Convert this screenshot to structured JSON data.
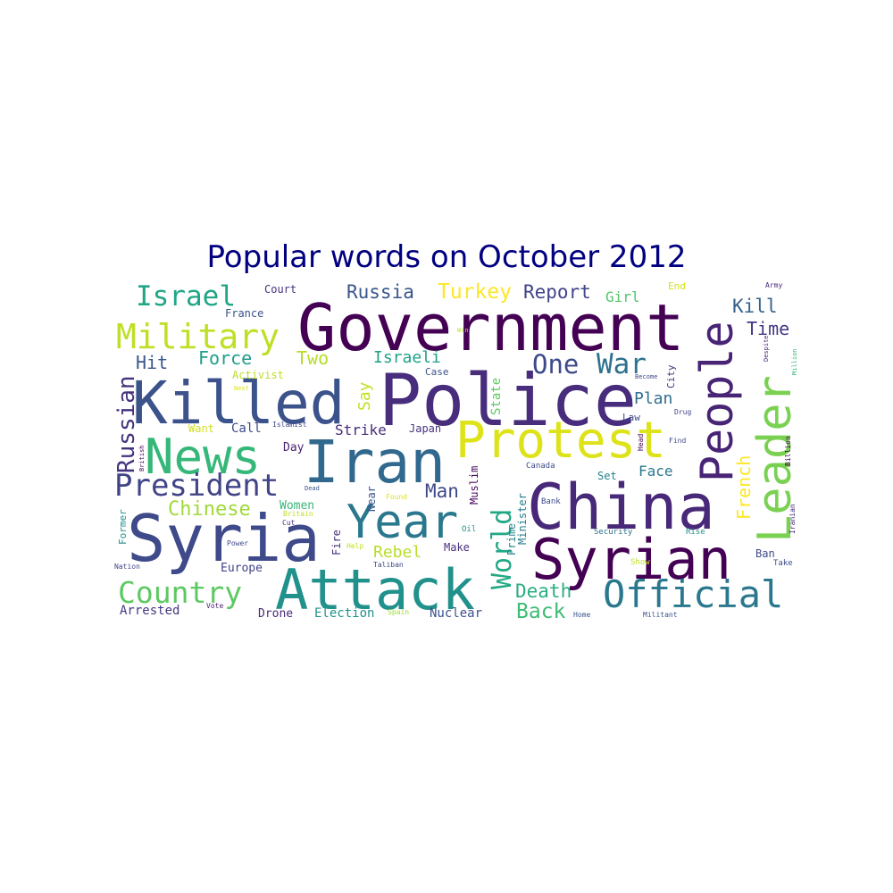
{
  "chart_data": {
    "type": "wordcloud",
    "title": "Popular words on October 2012",
    "words": [
      {
        "text": "Government",
        "size": 0.95,
        "color": "#440154"
      },
      {
        "text": "Police",
        "size": 0.98,
        "color": "#472d7b"
      },
      {
        "text": "Killed",
        "size": 0.9,
        "color": "#3b528b"
      },
      {
        "text": "Syria",
        "size": 0.9,
        "color": "#3e4a89"
      },
      {
        "text": "Iran",
        "size": 0.85,
        "color": "#31688e"
      },
      {
        "text": "China",
        "size": 0.82,
        "color": "#482878"
      },
      {
        "text": "Syrian",
        "size": 0.78,
        "color": "#440154"
      },
      {
        "text": "Attack",
        "size": 0.78,
        "color": "#21918c"
      },
      {
        "text": "Year",
        "size": 0.72,
        "color": "#2a788e"
      },
      {
        "text": "News",
        "size": 0.68,
        "color": "#35b779"
      },
      {
        "text": "Protest",
        "size": 0.7,
        "color": "#dde318"
      },
      {
        "text": "People",
        "size": 0.66,
        "color": "#482475"
      },
      {
        "text": "Leader",
        "size": 0.64,
        "color": "#7ad151"
      },
      {
        "text": "Military",
        "size": 0.44,
        "color": "#bddf26"
      },
      {
        "text": "President",
        "size": 0.42,
        "color": "#414487"
      },
      {
        "text": "Official",
        "size": 0.46,
        "color": "#2a788e"
      },
      {
        "text": "Country",
        "size": 0.38,
        "color": "#5ec962"
      },
      {
        "text": "Israel",
        "size": 0.38,
        "color": "#21a685"
      },
      {
        "text": "World",
        "size": 0.34,
        "color": "#22a884"
      },
      {
        "text": "One",
        "size": 0.32,
        "color": "#3e4a89"
      },
      {
        "text": "War",
        "size": 0.34,
        "color": "#2c728e"
      },
      {
        "text": "Russian",
        "size": 0.3,
        "color": "#46337e"
      },
      {
        "text": "Russia",
        "size": 0.24,
        "color": "#39568c"
      },
      {
        "text": "Turkey",
        "size": 0.26,
        "color": "#fde725"
      },
      {
        "text": "Report",
        "size": 0.24,
        "color": "#414487"
      },
      {
        "text": "Chinese",
        "size": 0.26,
        "color": "#a0da39"
      },
      {
        "text": "Man",
        "size": 0.24,
        "color": "#3e4989"
      },
      {
        "text": "Death",
        "size": 0.24,
        "color": "#29af7f"
      },
      {
        "text": "Back",
        "size": 0.26,
        "color": "#3dbc74"
      },
      {
        "text": "French",
        "size": 0.22,
        "color": "#fde725"
      },
      {
        "text": "Kill",
        "size": 0.24,
        "color": "#33638d"
      },
      {
        "text": "Time",
        "size": 0.22,
        "color": "#443983"
      },
      {
        "text": "Force",
        "size": 0.22,
        "color": "#1f9e89"
      },
      {
        "text": "Two",
        "size": 0.22,
        "color": "#b5de2b"
      },
      {
        "text": "Hit",
        "size": 0.22,
        "color": "#39568c"
      },
      {
        "text": "Israeli",
        "size": 0.2,
        "color": "#1fa188"
      },
      {
        "text": "Plan",
        "size": 0.2,
        "color": "#2e6e8e"
      },
      {
        "text": "Rebel",
        "size": 0.2,
        "color": "#b8de29"
      },
      {
        "text": "Say",
        "size": 0.2,
        "color": "#c2df23"
      },
      {
        "text": "State",
        "size": 0.16,
        "color": "#5ec962"
      },
      {
        "text": "Strike",
        "size": 0.18,
        "color": "#472c7a"
      },
      {
        "text": "Face",
        "size": 0.18,
        "color": "#2a788e"
      },
      {
        "text": "Girl",
        "size": 0.18,
        "color": "#52c569"
      },
      {
        "text": "Muslim",
        "size": 0.14,
        "color": "#46085c"
      },
      {
        "text": "Minister",
        "size": 0.14,
        "color": "#27808e"
      },
      {
        "text": "Prime",
        "size": 0.14,
        "color": "#25848e"
      },
      {
        "text": "Nuclear",
        "size": 0.16,
        "color": "#3b528b"
      },
      {
        "text": "Election",
        "size": 0.16,
        "color": "#21918c"
      },
      {
        "text": "Drone",
        "size": 0.14,
        "color": "#482878"
      },
      {
        "text": "Arrested",
        "size": 0.16,
        "color": "#443983"
      },
      {
        "text": "Europe",
        "size": 0.14,
        "color": "#414487"
      },
      {
        "text": "Women",
        "size": 0.14,
        "color": "#35b779"
      },
      {
        "text": "Want",
        "size": 0.14,
        "color": "#d0e11c"
      },
      {
        "text": "Call",
        "size": 0.14,
        "color": "#3e4a89"
      },
      {
        "text": "Day",
        "size": 0.14,
        "color": "#481f70"
      },
      {
        "text": "Fire",
        "size": 0.14,
        "color": "#472d7b"
      },
      {
        "text": "Near",
        "size": 0.14,
        "color": "#3b528b"
      },
      {
        "text": "Court",
        "size": 0.13,
        "color": "#46337e"
      },
      {
        "text": "France",
        "size": 0.13,
        "color": "#3b528b"
      },
      {
        "text": "Activist",
        "size": 0.13,
        "color": "#bddf26"
      },
      {
        "text": "Set",
        "size": 0.13,
        "color": "#25838e"
      },
      {
        "text": "Law",
        "size": 0.12,
        "color": "#3e4a89"
      },
      {
        "text": "City",
        "size": 0.12,
        "color": "#46337e"
      },
      {
        "text": "Case",
        "size": 0.12,
        "color": "#3b528b"
      },
      {
        "text": "Make",
        "size": 0.13,
        "color": "#472d7b"
      },
      {
        "text": "Japan",
        "size": 0.13,
        "color": "#46327e"
      },
      {
        "text": "Former",
        "size": 0.12,
        "color": "#21918c"
      },
      {
        "text": "Ban",
        "size": 0.13,
        "color": "#3e4a89"
      },
      {
        "text": "End",
        "size": 0.12,
        "color": "#d8e219"
      },
      {
        "text": "Army",
        "size": 0.09,
        "color": "#482878"
      },
      {
        "text": "Win",
        "size": 0.08,
        "color": "#b5de2b"
      },
      {
        "text": "Next",
        "size": 0.08,
        "color": "#dde318"
      },
      {
        "text": "Islamist",
        "size": 0.08,
        "color": "#3e4a89"
      },
      {
        "text": "British",
        "size": 0.08,
        "color": "#440154"
      },
      {
        "text": "Dead",
        "size": 0.08,
        "color": "#3b528b"
      },
      {
        "text": "Britain",
        "size": 0.08,
        "color": "#bddf26"
      },
      {
        "text": "Cut",
        "size": 0.08,
        "color": "#46337e"
      },
      {
        "text": "Power",
        "size": 0.08,
        "color": "#3e4a89"
      },
      {
        "text": "Nation",
        "size": 0.08,
        "color": "#414487"
      },
      {
        "text": "Vote",
        "size": 0.08,
        "color": "#481f70"
      },
      {
        "text": "Found",
        "size": 0.08,
        "color": "#dde318"
      },
      {
        "text": "Help",
        "size": 0.08,
        "color": "#c2df23"
      },
      {
        "text": "Oil",
        "size": 0.09,
        "color": "#21918c"
      },
      {
        "text": "Taliban",
        "size": 0.08,
        "color": "#3e4a89"
      },
      {
        "text": "Spain",
        "size": 0.08,
        "color": "#a0da39"
      },
      {
        "text": "Home",
        "size": 0.08,
        "color": "#3b528b"
      },
      {
        "text": "Militant",
        "size": 0.08,
        "color": "#3b528b"
      },
      {
        "text": "Canada",
        "size": 0.09,
        "color": "#3e4a89"
      },
      {
        "text": "Bank",
        "size": 0.09,
        "color": "#3e4a89"
      },
      {
        "text": "Security",
        "size": 0.1,
        "color": "#2c728e"
      },
      {
        "text": "Rise",
        "size": 0.1,
        "color": "#21918c"
      },
      {
        "text": "Show",
        "size": 0.09,
        "color": "#bddf26"
      },
      {
        "text": "Take",
        "size": 0.09,
        "color": "#3e4a89"
      },
      {
        "text": "Head",
        "size": 0.08,
        "color": "#440154"
      },
      {
        "text": "Find",
        "size": 0.08,
        "color": "#3e4a89"
      },
      {
        "text": "Drug",
        "size": 0.08,
        "color": "#414487"
      },
      {
        "text": "Become",
        "size": 0.07,
        "color": "#3e4a89"
      },
      {
        "text": "Despite",
        "size": 0.07,
        "color": "#482878"
      },
      {
        "text": "Million",
        "size": 0.07,
        "color": "#35b779"
      },
      {
        "text": "Billion",
        "size": 0.08,
        "color": "#440154"
      },
      {
        "text": "Iranian",
        "size": 0.08,
        "color": "#482878"
      }
    ]
  }
}
